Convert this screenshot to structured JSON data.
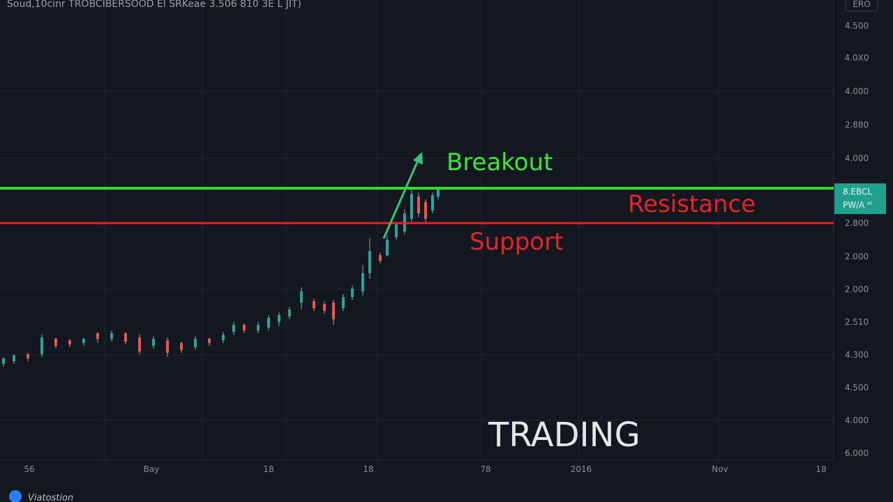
{
  "header": {
    "title": "Soud,10cinr TROBCIBERSOOD  El  SRKeae  3.506  810  3E  L JIT)",
    "badge": "ERO"
  },
  "price_axis": {
    "labels": [
      "4.500",
      "4.0X0",
      "4.000",
      "2.880",
      "4.000",
      "2.800",
      "2.000",
      "2.000",
      "2.510",
      "4.300",
      "4.500",
      "4.000",
      "6.000"
    ],
    "tag": [
      "8.EBCL",
      "PW/A ᴹ"
    ]
  },
  "time_axis": {
    "labels": [
      "56",
      "Bay",
      "18",
      "18",
      "78",
      "2016",
      "Nov",
      "18"
    ]
  },
  "annotations": {
    "breakout": "Breakout",
    "resistance": "Resistance",
    "support": "Support",
    "watermark": "TRADING"
  },
  "footer": {
    "logo_text": "Viatostion"
  }
}
